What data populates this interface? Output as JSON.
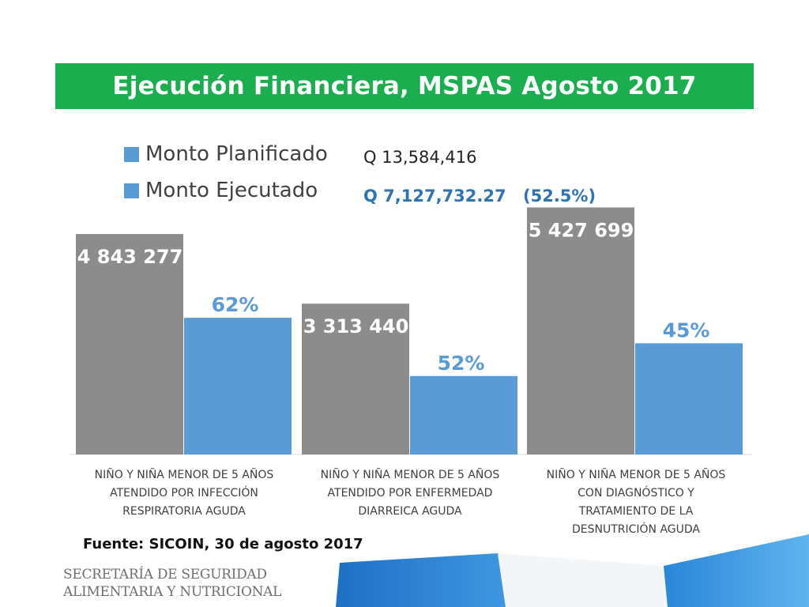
{
  "title": "Ejecución Financiera,  MSPAS  Agosto 2017",
  "legend": [
    {
      "label": "Monto Planificado",
      "color": "#5b9bd5"
    },
    {
      "label": "Monto Ejecutado",
      "color": "#5b9bd5"
    }
  ],
  "amounts": {
    "planned": "Q 13,584,416",
    "executed": "Q 7,127,732.27",
    "executed_pct": "(52.5%)"
  },
  "colors": {
    "title_bg": "#1aae4f",
    "bar_planned": "#8c8c8c",
    "bar_executed": "#5b9bd5",
    "value_label_planned": "#ffffff",
    "value_label_executed": "#5b9bd5"
  },
  "chart_data": {
    "type": "bar",
    "categories": [
      "NIÑO Y NIÑA MENOR DE 5 AÑOS ATENDIDO POR INFECCIÓN RESPIRATORIA AGUDA",
      "NIÑO Y NIÑA MENOR DE 5 AÑOS ATENDIDO POR ENFERMEDAD DIARREICA AGUDA",
      "NIÑO Y NIÑA MENOR DE 5 AÑOS CON DIAGNÓSTICO Y TRATAMIENTO DE LA DESNUTRICIÓN AGUDA"
    ],
    "category_lines": [
      [
        "NIÑO Y NIÑA MENOR DE 5 AÑOS",
        "ATENDIDO POR INFECCIÓN",
        "RESPIRATORIA AGUDA"
      ],
      [
        "NIÑO Y NIÑA MENOR DE 5 AÑOS",
        "ATENDIDO POR ENFERMEDAD",
        "DIARREICA AGUDA"
      ],
      [
        "NIÑO Y NIÑA MENOR DE 5 AÑOS",
        "CON DIAGNÓSTICO Y",
        "TRATAMIENTO DE LA",
        "DESNUTRICIÓN AGUDA"
      ]
    ],
    "series": [
      {
        "name": "Monto Planificado",
        "values": [
          4843277,
          3313440,
          5427699
        ],
        "labels": [
          "4 843 277",
          "3 313 440",
          "5 427 699"
        ]
      },
      {
        "name": "Monto Ejecutado",
        "values": [
          3002832,
          1722989,
          2442465
        ],
        "labels": [
          "62%",
          "52%",
          "45%"
        ]
      }
    ],
    "ylim": [
      0,
      5800000
    ],
    "grid": false,
    "legend_position": "top-left"
  },
  "source": "Fuente:  SICOIN, 30 de agosto 2017",
  "logo": {
    "line1": "SECRETARÍA DE SEGURIDAD",
    "line2": "ALIMENTARIA Y NUTRICIONAL"
  }
}
